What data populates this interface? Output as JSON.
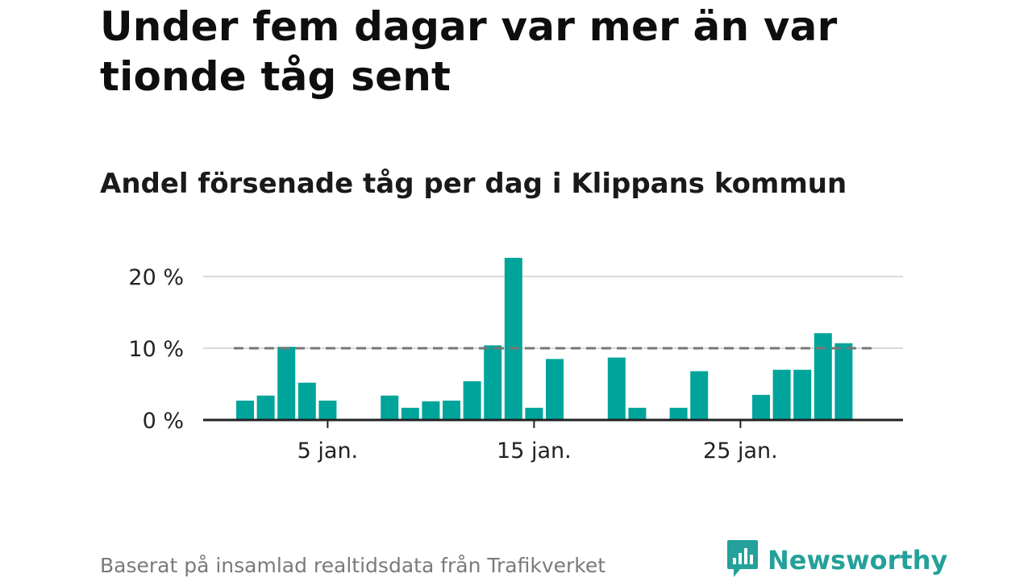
{
  "headline": "Under fem dagar var mer än var tionde tåg sent",
  "footer": {
    "source": "Baserat på insamlad realtidsdata från Trafikverket",
    "brand": "Newsworthy",
    "brand_icon": "newsworthy-chart-bubble-icon"
  },
  "colors": {
    "bar": "#00a49a",
    "reference_line": "#777777",
    "grid": "#d9d9d9",
    "axis": "#222222",
    "brand": "#23a19a"
  },
  "chart_data": {
    "type": "bar",
    "title": "Andel försenade tåg per dag i Klippans kommun",
    "xlabel": "",
    "ylabel": "",
    "x": [
      1,
      2,
      3,
      4,
      5,
      6,
      7,
      8,
      9,
      10,
      11,
      12,
      13,
      14,
      15,
      16,
      17,
      18,
      19,
      20,
      21,
      22,
      23,
      24,
      25,
      26,
      27,
      28,
      29,
      30,
      31
    ],
    "values": [
      2.7,
      3.4,
      10.2,
      5.2,
      2.7,
      0,
      0,
      3.4,
      1.7,
      2.6,
      2.7,
      5.4,
      10.4,
      22.6,
      1.7,
      8.5,
      0,
      0,
      8.7,
      1.7,
      0,
      1.7,
      6.8,
      0,
      0,
      3.5,
      7.0,
      7.0,
      12.1,
      10.7,
      0
    ],
    "ylim": [
      0,
      23
    ],
    "yticks": [
      0,
      10,
      20
    ],
    "ytick_labels": [
      "0 %",
      "10 %",
      "20 %"
    ],
    "xticks": [
      5,
      15,
      25
    ],
    "xtick_labels": [
      "5 jan.",
      "15 jan.",
      "25 jan."
    ],
    "reference_line": {
      "value": 10,
      "style": "dashed"
    },
    "grid": true,
    "legend": "none"
  }
}
